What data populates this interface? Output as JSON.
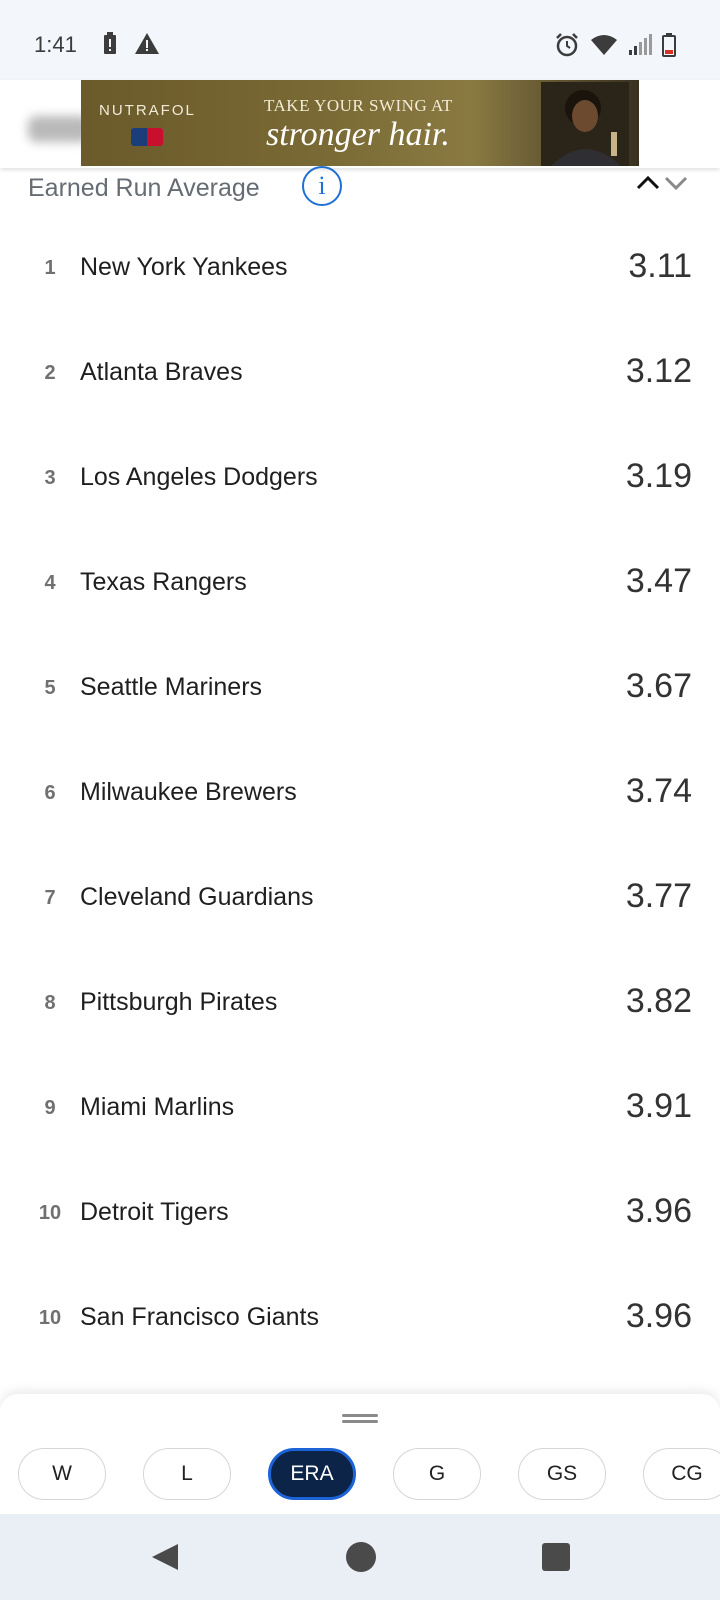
{
  "status_bar": {
    "time": "1:41"
  },
  "ad": {
    "brand": "NUTRAFOL",
    "tagline": "TAKE YOUR SWING AT",
    "headline": "stronger hair."
  },
  "section": {
    "title": "Earned Run Average"
  },
  "rows": [
    {
      "rank": "1",
      "team": "New York Yankees",
      "value": "3.11"
    },
    {
      "rank": "2",
      "team": "Atlanta Braves",
      "value": "3.12"
    },
    {
      "rank": "3",
      "team": "Los Angeles Dodgers",
      "value": "3.19"
    },
    {
      "rank": "4",
      "team": "Texas Rangers",
      "value": "3.47"
    },
    {
      "rank": "5",
      "team": "Seattle Mariners",
      "value": "3.67"
    },
    {
      "rank": "6",
      "team": "Milwaukee Brewers",
      "value": "3.74"
    },
    {
      "rank": "7",
      "team": "Cleveland Guardians",
      "value": "3.77"
    },
    {
      "rank": "8",
      "team": "Pittsburgh Pirates",
      "value": "3.82"
    },
    {
      "rank": "9",
      "team": "Miami Marlins",
      "value": "3.91"
    },
    {
      "rank": "10",
      "team": "Detroit Tigers",
      "value": "3.96"
    },
    {
      "rank": "10",
      "team": "San Francisco Giants",
      "value": "3.96"
    }
  ],
  "stat_chips": [
    {
      "label": "W",
      "active": false
    },
    {
      "label": "L",
      "active": false
    },
    {
      "label": "ERA",
      "active": true
    },
    {
      "label": "G",
      "active": false
    },
    {
      "label": "GS",
      "active": false
    },
    {
      "label": "CG",
      "active": false
    }
  ],
  "colors": {
    "accent": "#1d63d8",
    "active_chip_bg": "#0b2447"
  }
}
